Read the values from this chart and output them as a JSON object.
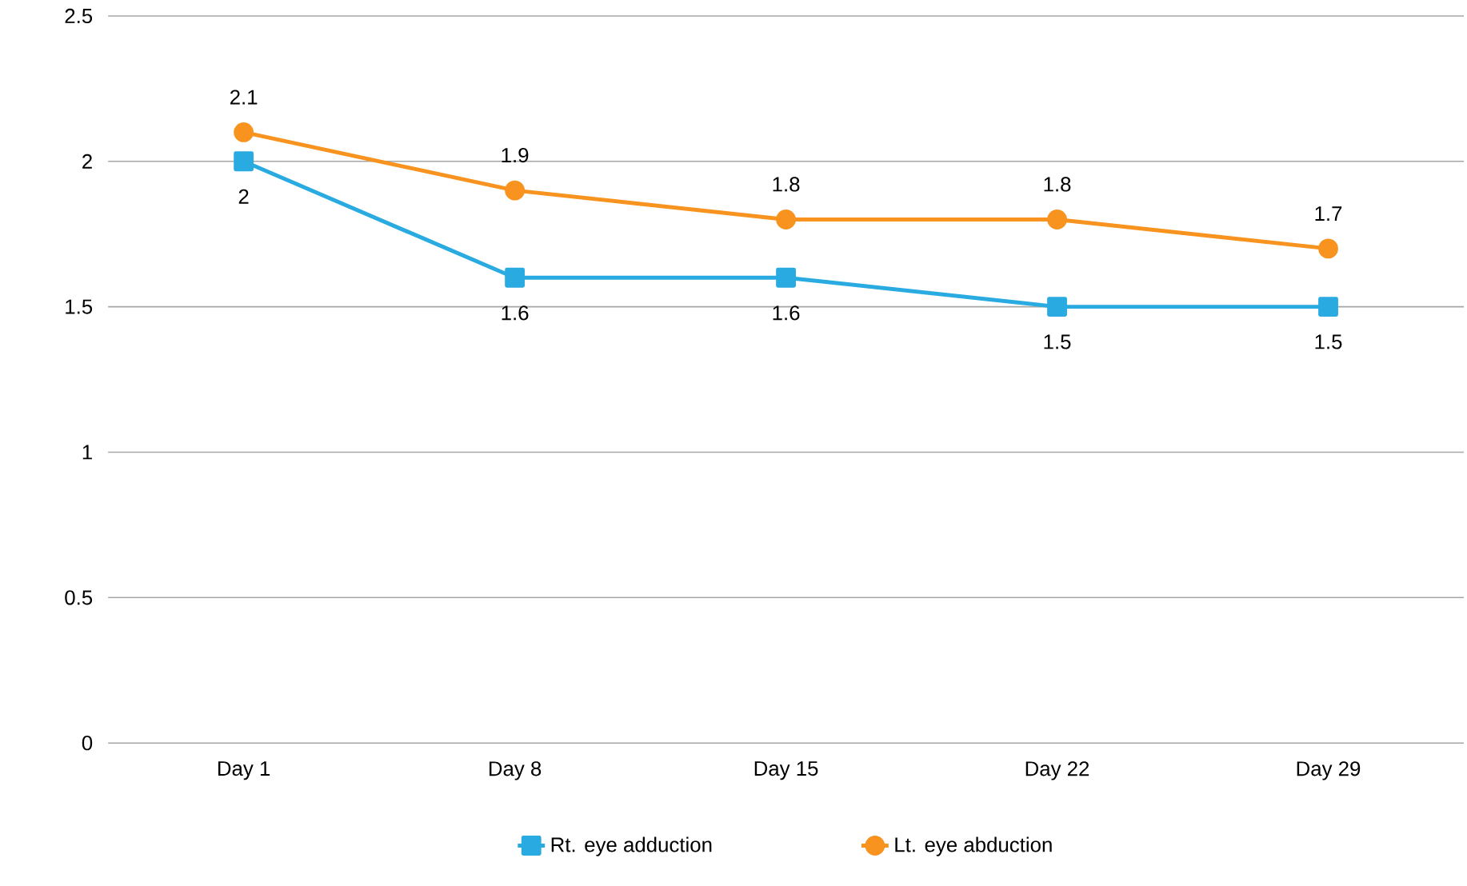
{
  "chart_data": {
    "type": "line",
    "categories": [
      "Day 1",
      "Day 8",
      "Day 15",
      "Day 22",
      "Day 29"
    ],
    "series": [
      {
        "name": "Rt. eye adduction",
        "color": "#29abe2",
        "values": [
          2,
          1.6,
          1.6,
          1.5,
          1.5
        ],
        "marker": "square"
      },
      {
        "name": "Lt. eye abduction",
        "color": "#f7931e",
        "values": [
          2.1,
          1.9,
          1.8,
          1.8,
          1.7
        ],
        "marker": "circle"
      }
    ],
    "ylim": [
      0,
      2.5
    ],
    "yticks": [
      0,
      0.5,
      1,
      1.5,
      2,
      2.5
    ],
    "grid": "y",
    "legend": "bottom",
    "data_labels": true
  }
}
